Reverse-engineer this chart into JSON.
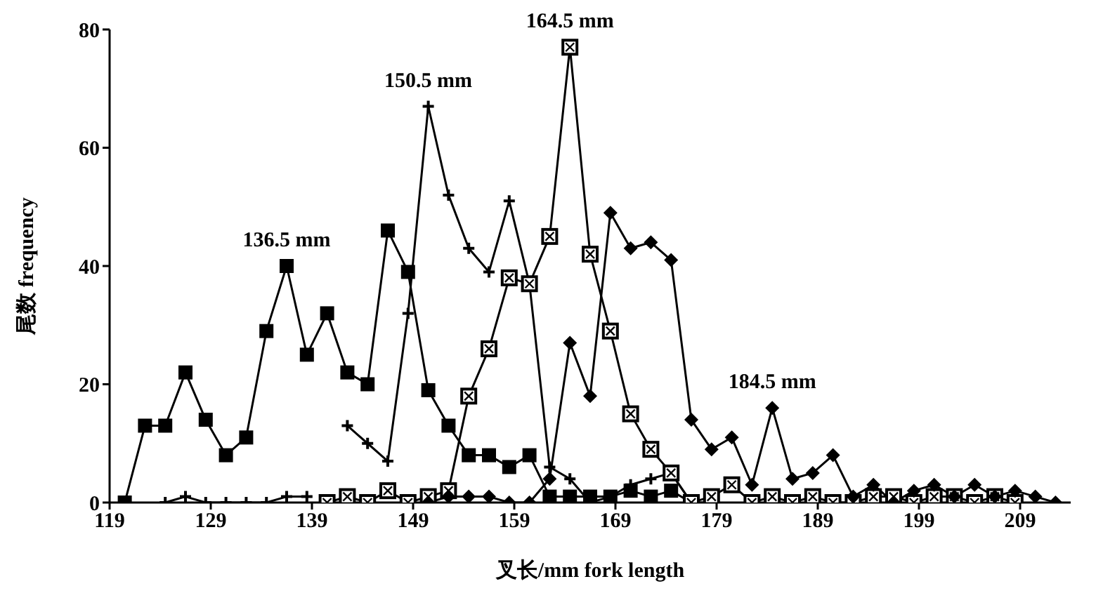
{
  "chart_data": {
    "type": "line",
    "xlabel": "叉长/mm  fork length",
    "ylabel": "尾数  frequency",
    "xlim": [
      119,
      214
    ],
    "xticks": [
      119,
      129,
      139,
      149,
      159,
      169,
      179,
      189,
      199,
      209
    ],
    "ylim": [
      0,
      80
    ],
    "yticks": [
      0,
      20,
      40,
      60,
      80
    ],
    "line_style": "solid",
    "series": [
      {
        "color": "#000000",
        "marker": "square",
        "x": [
          120.5,
          122.5,
          124.5,
          126.5,
          128.5,
          130.5,
          132.5,
          134.5,
          136.5,
          138.5,
          140.5,
          142.5,
          144.5,
          146.5,
          148.5,
          150.5,
          152.5,
          154.5,
          156.5,
          158.5,
          160.5,
          162.5,
          164.5,
          166.5,
          168.5,
          170.5,
          172.5,
          174.5,
          176.5
        ],
        "values": [
          0,
          13,
          13,
          22,
          14,
          8,
          11,
          29,
          40,
          25,
          32,
          22,
          20,
          46,
          39,
          19,
          13,
          8,
          8,
          6,
          8,
          1,
          1,
          1,
          1,
          2,
          1,
          2,
          0
        ]
      },
      {
        "color": "#000000",
        "marker": "cross",
        "x": [
          124.5,
          126.5,
          128.5,
          130.5,
          132.5,
          134.5,
          136.5,
          138.5,
          140.5,
          142.5,
          144.5,
          146.5,
          148.5,
          150.5,
          152.5,
          154.5,
          156.5,
          158.5,
          160.5,
          162.5,
          164.5,
          166.5,
          168.5,
          170.5,
          172.5,
          174.5,
          176.5,
          178.5
        ],
        "values": [
          0,
          1,
          0,
          0,
          0,
          0,
          1,
          1,
          null,
          13,
          10,
          7,
          32,
          67,
          52,
          43,
          39,
          51,
          37,
          6,
          4,
          0,
          1,
          3,
          4,
          5,
          0,
          0
        ]
      },
      {
        "color": "#000000",
        "marker": "square-cross",
        "x": [
          140.5,
          142.5,
          144.5,
          146.5,
          148.5,
          150.5,
          152.5,
          154.5,
          156.5,
          158.5,
          160.5,
          162.5,
          164.5,
          166.5,
          168.5,
          170.5,
          172.5,
          174.5,
          176.5,
          178.5,
          180.5,
          182.5,
          184.5,
          186.5,
          188.5,
          190.5,
          192.5,
          194.5,
          196.5,
          198.5,
          200.5,
          202.5,
          204.5,
          206.5,
          208.5
        ],
        "values": [
          0,
          1,
          0,
          2,
          0,
          1,
          2,
          18,
          26,
          38,
          37,
          45,
          77,
          42,
          29,
          15,
          9,
          5,
          0,
          1,
          3,
          0,
          1,
          0,
          1,
          0,
          0,
          1,
          1,
          0,
          1,
          1,
          0,
          1,
          0
        ]
      },
      {
        "color": "#000000",
        "marker": "diamond",
        "x": [
          150.5,
          152.5,
          154.5,
          156.5,
          158.5,
          160.5,
          162.5,
          164.5,
          166.5,
          168.5,
          170.5,
          172.5,
          174.5,
          176.5,
          178.5,
          180.5,
          182.5,
          184.5,
          186.5,
          188.5,
          190.5,
          192.5,
          194.5,
          196.5,
          198.5,
          200.5,
          202.5,
          204.5,
          206.5,
          208.5,
          210.5,
          212.5
        ],
        "values": [
          0,
          1,
          1,
          1,
          0,
          0,
          4,
          27,
          18,
          49,
          43,
          44,
          41,
          14,
          9,
          11,
          3,
          16,
          4,
          5,
          8,
          1,
          3,
          0,
          2,
          3,
          1,
          3,
          1,
          2,
          1,
          0
        ]
      }
    ],
    "annotations": [
      {
        "text": "136.5 mm",
        "x": 136.5,
        "y": 40
      },
      {
        "text": "150.5 mm",
        "x": 150.5,
        "y": 67
      },
      {
        "text": "164.5 mm",
        "x": 164.5,
        "y": 77
      },
      {
        "text": "184.5 mm",
        "x": 184.5,
        "y": 16
      }
    ]
  }
}
